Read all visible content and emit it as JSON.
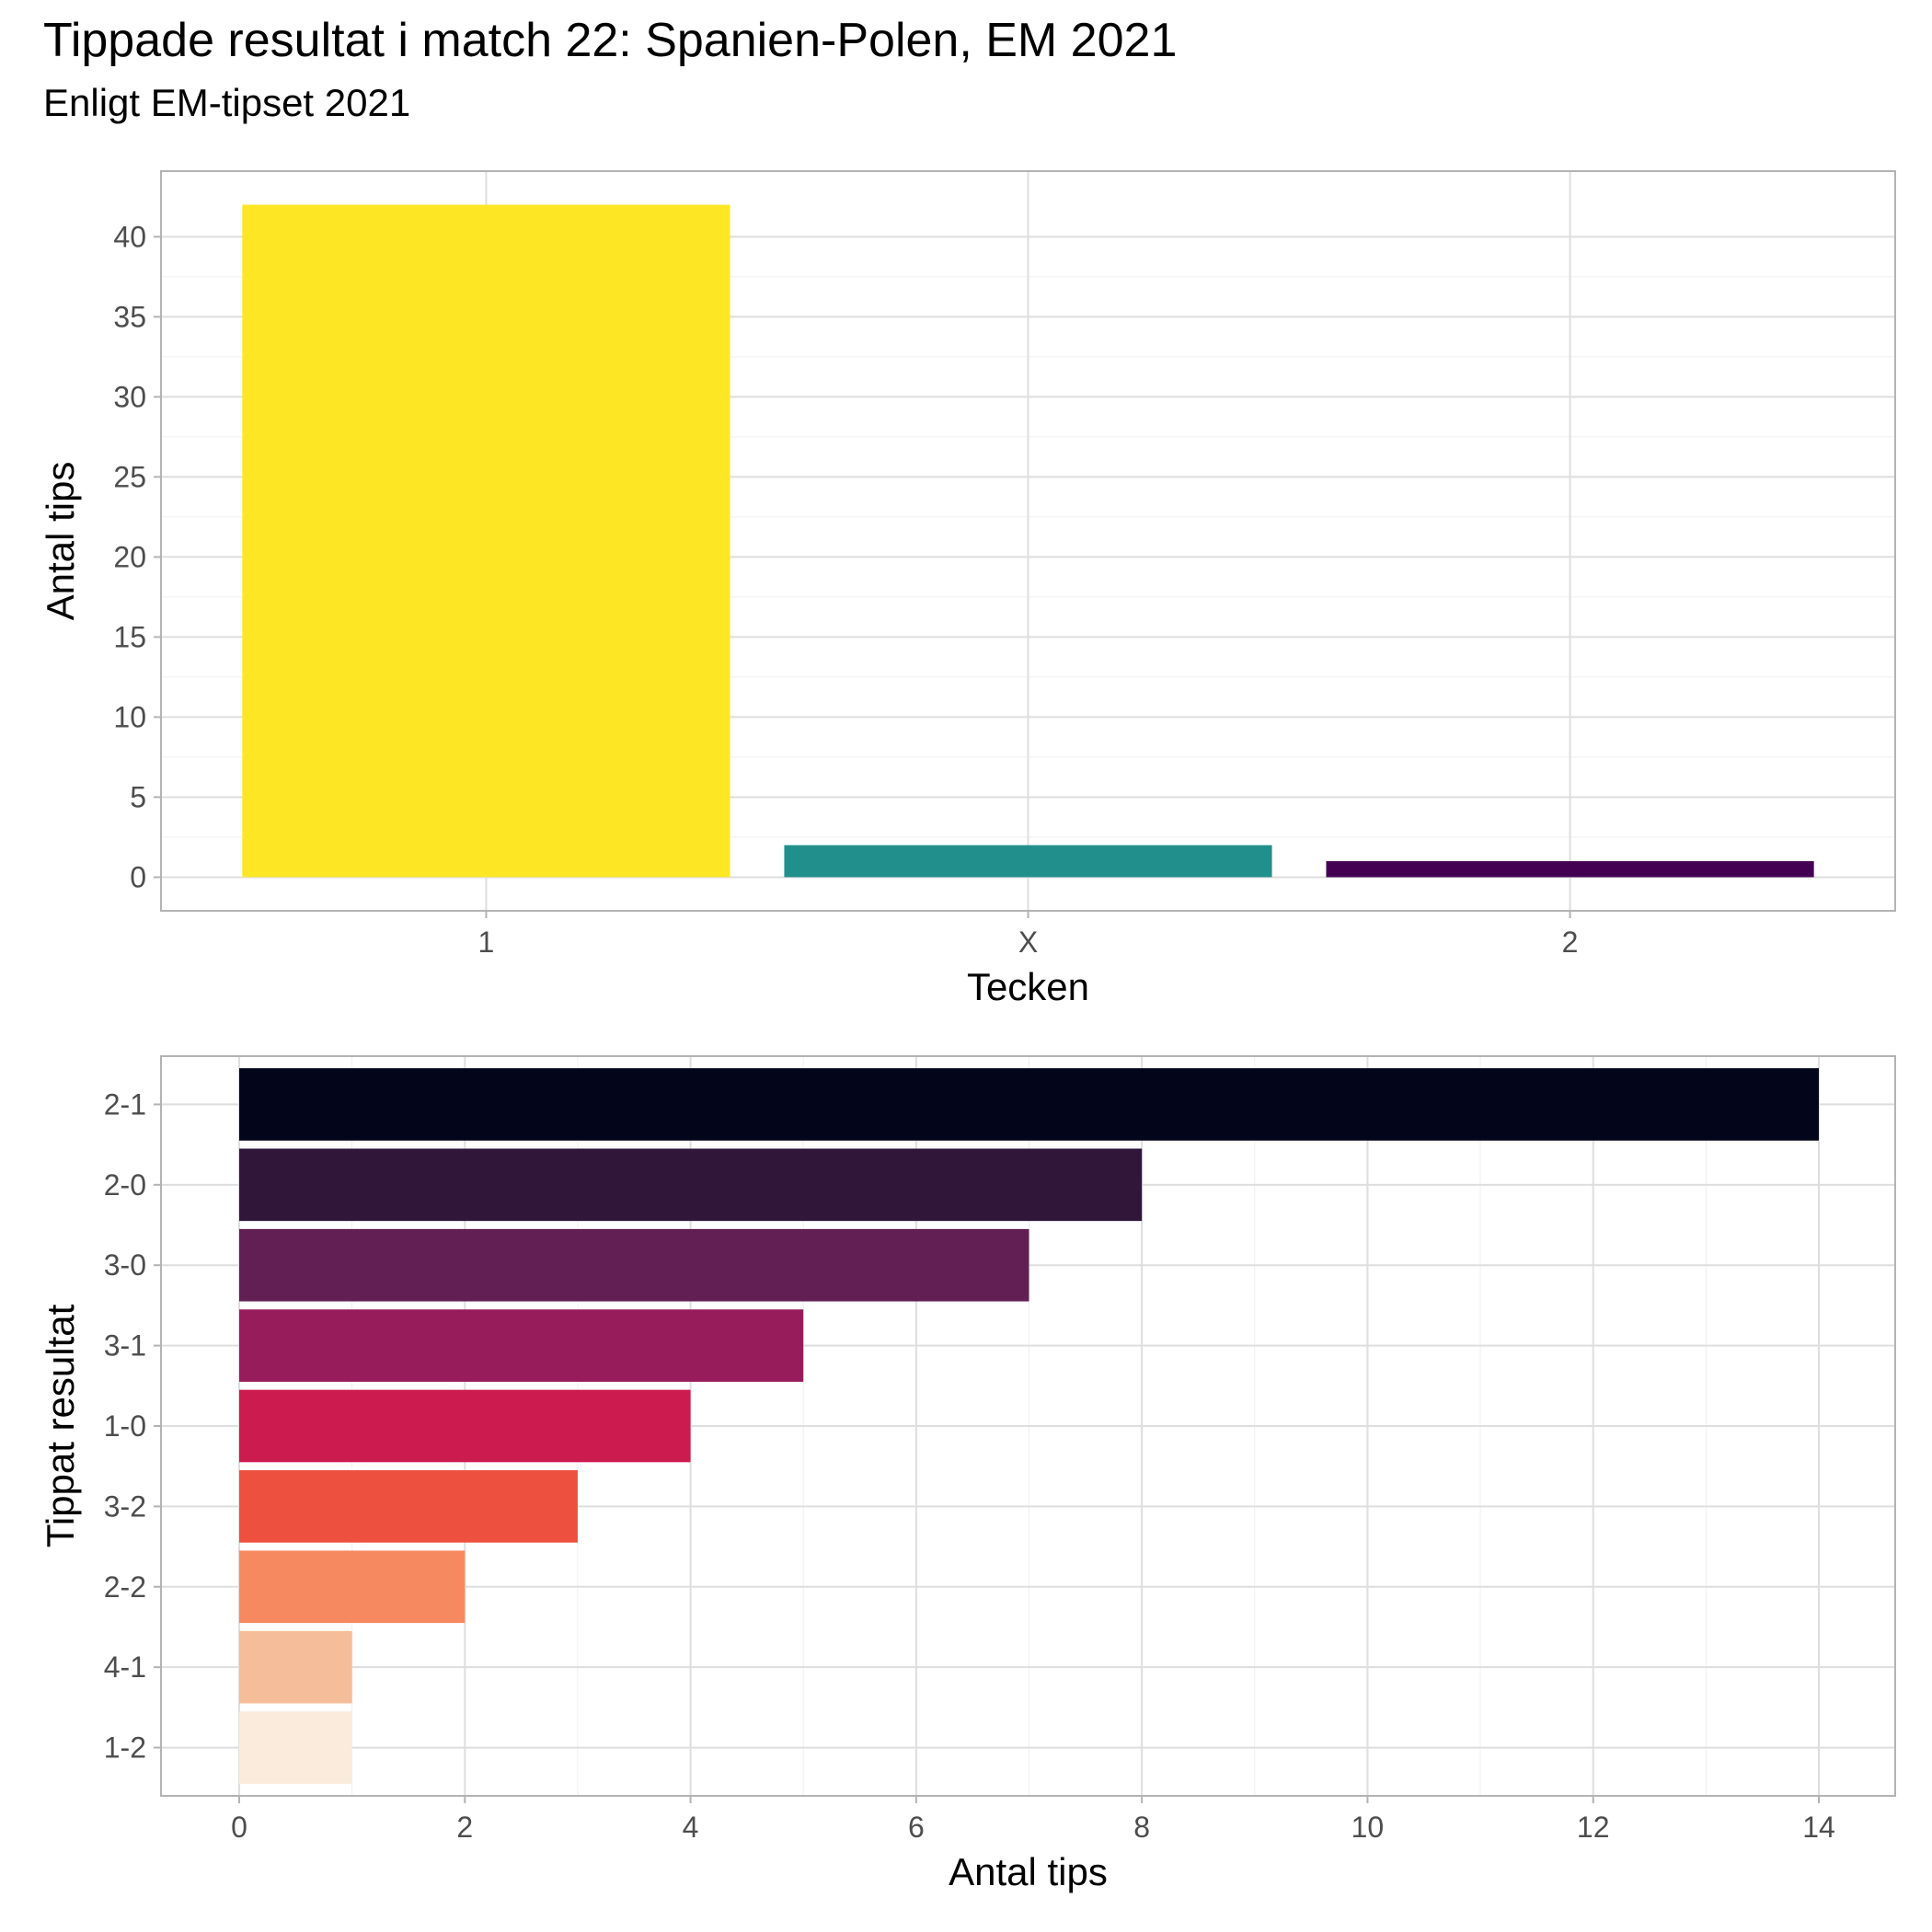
{
  "title": "Tippade resultat i match 22: Spanien-Polen, EM 2021",
  "subtitle": "Enligt EM-tipset 2021",
  "chart_data": [
    {
      "type": "bar",
      "orientation": "vertical",
      "categories": [
        "1",
        "X",
        "2"
      ],
      "values": [
        42,
        2,
        1
      ],
      "colors": [
        "#FDE725",
        "#21908C",
        "#440154"
      ],
      "xlabel": "Tecken",
      "ylabel": "Antal tips",
      "ylim": [
        0,
        44
      ],
      "yticks": [
        0,
        5,
        10,
        15,
        20,
        25,
        30,
        35,
        40
      ],
      "grid": true,
      "legend": "none"
    },
    {
      "type": "bar",
      "orientation": "horizontal",
      "categories": [
        "2-1",
        "2-0",
        "3-0",
        "3-1",
        "1-0",
        "3-2",
        "2-2",
        "4-1",
        "1-2"
      ],
      "values": [
        14,
        8,
        7,
        5,
        4,
        3,
        2,
        1,
        1
      ],
      "colors": [
        "#03051A",
        "#30173A",
        "#611F53",
        "#971C5B",
        "#CB1B4F",
        "#EE5040",
        "#F6895F",
        "#F6BD9A",
        "#FAEBDD"
      ],
      "xlabel": "Antal tips",
      "ylabel": "Tippat resultat",
      "xlim": [
        0,
        14
      ],
      "xticks": [
        0,
        2,
        4,
        6,
        8,
        10,
        12,
        14
      ],
      "grid": true,
      "legend": "none"
    }
  ]
}
